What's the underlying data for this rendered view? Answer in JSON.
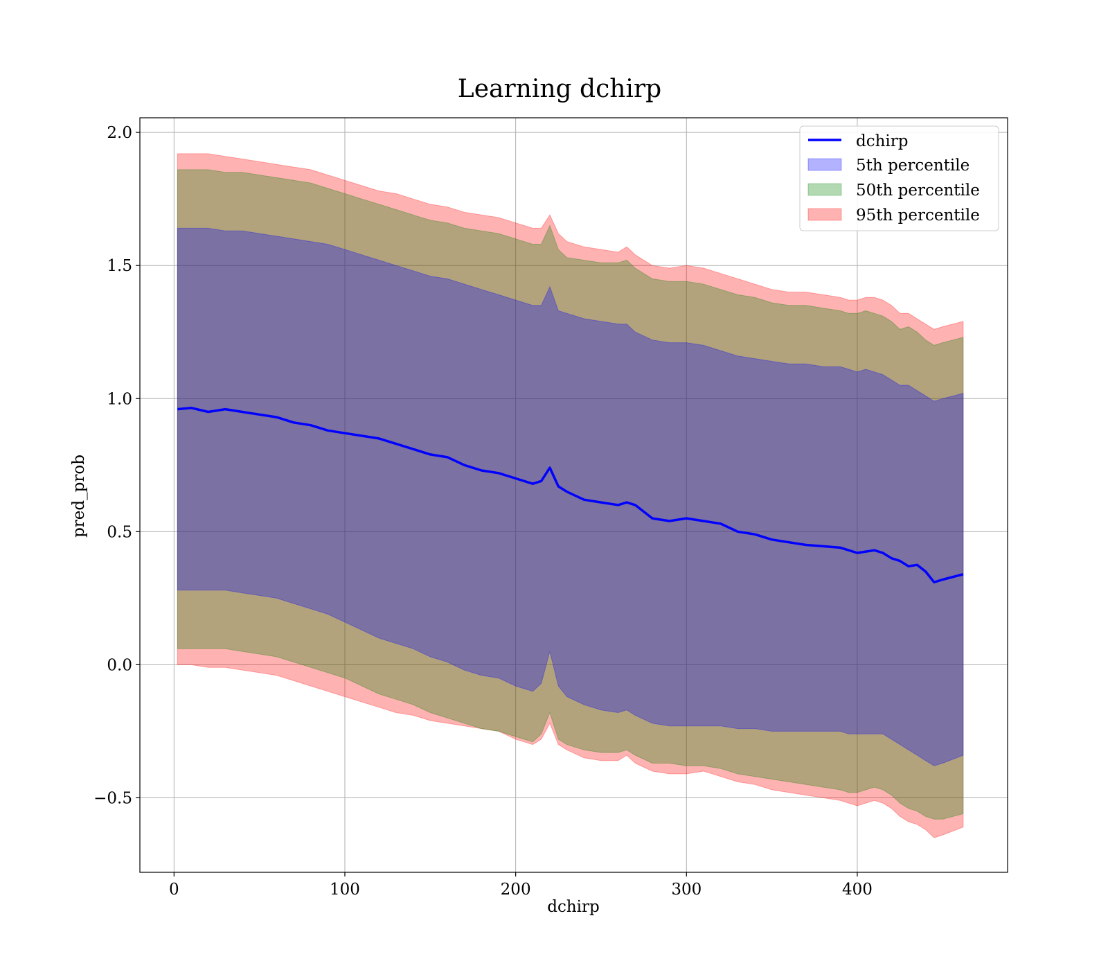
{
  "chart_data": {
    "type": "area",
    "title": "Learning dchirp",
    "xlabel": "dchirp",
    "ylabel": "pred_prob",
    "xlim": [
      -20,
      488
    ],
    "ylim": [
      -0.78,
      2.055
    ],
    "xticks": [
      0,
      100,
      200,
      300,
      400
    ],
    "yticks": [
      -0.5,
      0.0,
      0.5,
      1.0,
      1.5,
      2.0
    ],
    "ytick_labels": [
      "−0.5",
      "0.0",
      "0.5",
      "1.0",
      "1.5",
      "2.0"
    ],
    "grid": true,
    "legend_position": "upper right",
    "colors": {
      "line": "#0000ff",
      "p5": "#0000ff",
      "p50": "#008000",
      "p95": "#ff0000"
    },
    "x": [
      2,
      10,
      20,
      30,
      40,
      50,
      60,
      70,
      80,
      90,
      100,
      110,
      120,
      130,
      140,
      150,
      160,
      170,
      180,
      190,
      200,
      210,
      215,
      220,
      225,
      230,
      240,
      250,
      260,
      265,
      270,
      280,
      290,
      300,
      310,
      320,
      330,
      340,
      350,
      360,
      370,
      380,
      390,
      395,
      400,
      405,
      410,
      415,
      420,
      425,
      430,
      435,
      440,
      445,
      450,
      462
    ],
    "series": [
      {
        "name": "dchirp",
        "kind": "line",
        "values": [
          0.96,
          0.965,
          0.95,
          0.96,
          0.95,
          0.94,
          0.93,
          0.91,
          0.9,
          0.88,
          0.87,
          0.86,
          0.85,
          0.83,
          0.81,
          0.79,
          0.78,
          0.75,
          0.73,
          0.72,
          0.7,
          0.68,
          0.69,
          0.74,
          0.67,
          0.65,
          0.62,
          0.61,
          0.6,
          0.61,
          0.6,
          0.55,
          0.54,
          0.55,
          0.54,
          0.53,
          0.5,
          0.49,
          0.47,
          0.46,
          0.45,
          0.445,
          0.44,
          0.43,
          0.42,
          0.425,
          0.43,
          0.42,
          0.4,
          0.39,
          0.37,
          0.375,
          0.35,
          0.31,
          0.32,
          0.34
        ]
      },
      {
        "name": "5th percentile",
        "kind": "band",
        "lower": [
          0.28,
          0.28,
          0.28,
          0.28,
          0.27,
          0.26,
          0.25,
          0.23,
          0.21,
          0.19,
          0.16,
          0.13,
          0.1,
          0.08,
          0.06,
          0.03,
          0.01,
          -0.02,
          -0.04,
          -0.05,
          -0.08,
          -0.1,
          -0.07,
          0.05,
          -0.08,
          -0.12,
          -0.15,
          -0.17,
          -0.18,
          -0.17,
          -0.19,
          -0.22,
          -0.23,
          -0.23,
          -0.23,
          -0.23,
          -0.24,
          -0.24,
          -0.25,
          -0.25,
          -0.25,
          -0.25,
          -0.25,
          -0.26,
          -0.26,
          -0.26,
          -0.26,
          -0.26,
          -0.28,
          -0.3,
          -0.32,
          -0.34,
          -0.36,
          -0.38,
          -0.37,
          -0.34
        ],
        "upper": [
          1.64,
          1.64,
          1.64,
          1.63,
          1.63,
          1.62,
          1.61,
          1.6,
          1.59,
          1.58,
          1.56,
          1.54,
          1.52,
          1.5,
          1.48,
          1.46,
          1.45,
          1.43,
          1.41,
          1.39,
          1.37,
          1.35,
          1.35,
          1.42,
          1.33,
          1.32,
          1.3,
          1.29,
          1.28,
          1.28,
          1.25,
          1.22,
          1.21,
          1.21,
          1.2,
          1.18,
          1.16,
          1.15,
          1.14,
          1.13,
          1.13,
          1.12,
          1.12,
          1.11,
          1.1,
          1.11,
          1.1,
          1.09,
          1.07,
          1.05,
          1.05,
          1.03,
          1.01,
          0.99,
          1.0,
          1.02
        ]
      },
      {
        "name": "50th percentile",
        "kind": "band",
        "lower": [
          0.06,
          0.06,
          0.06,
          0.06,
          0.05,
          0.04,
          0.03,
          0.01,
          -0.01,
          -0.03,
          -0.05,
          -0.08,
          -0.11,
          -0.13,
          -0.15,
          -0.18,
          -0.2,
          -0.22,
          -0.24,
          -0.25,
          -0.27,
          -0.29,
          -0.26,
          -0.18,
          -0.28,
          -0.3,
          -0.32,
          -0.33,
          -0.33,
          -0.32,
          -0.34,
          -0.37,
          -0.37,
          -0.38,
          -0.38,
          -0.39,
          -0.41,
          -0.42,
          -0.43,
          -0.44,
          -0.45,
          -0.46,
          -0.47,
          -0.48,
          -0.48,
          -0.47,
          -0.46,
          -0.47,
          -0.49,
          -0.52,
          -0.54,
          -0.55,
          -0.57,
          -0.58,
          -0.58,
          -0.56
        ],
        "upper": [
          1.86,
          1.86,
          1.86,
          1.85,
          1.85,
          1.84,
          1.83,
          1.82,
          1.81,
          1.79,
          1.77,
          1.75,
          1.73,
          1.71,
          1.69,
          1.67,
          1.66,
          1.64,
          1.63,
          1.62,
          1.6,
          1.58,
          1.58,
          1.65,
          1.56,
          1.53,
          1.52,
          1.51,
          1.51,
          1.52,
          1.49,
          1.45,
          1.44,
          1.44,
          1.43,
          1.41,
          1.39,
          1.38,
          1.36,
          1.35,
          1.35,
          1.34,
          1.33,
          1.32,
          1.32,
          1.33,
          1.32,
          1.31,
          1.29,
          1.26,
          1.27,
          1.25,
          1.22,
          1.2,
          1.21,
          1.23
        ]
      },
      {
        "name": "95th percentile",
        "kind": "band",
        "lower": [
          0.0,
          0.0,
          -0.01,
          -0.01,
          -0.02,
          -0.03,
          -0.04,
          -0.06,
          -0.08,
          -0.1,
          -0.12,
          -0.14,
          -0.16,
          -0.18,
          -0.19,
          -0.21,
          -0.22,
          -0.23,
          -0.24,
          -0.25,
          -0.28,
          -0.3,
          -0.28,
          -0.22,
          -0.3,
          -0.32,
          -0.35,
          -0.36,
          -0.36,
          -0.34,
          -0.37,
          -0.4,
          -0.41,
          -0.41,
          -0.4,
          -0.42,
          -0.44,
          -0.45,
          -0.47,
          -0.48,
          -0.49,
          -0.5,
          -0.51,
          -0.52,
          -0.53,
          -0.52,
          -0.51,
          -0.52,
          -0.54,
          -0.57,
          -0.59,
          -0.6,
          -0.62,
          -0.65,
          -0.64,
          -0.61
        ],
        "upper": [
          1.92,
          1.92,
          1.92,
          1.91,
          1.9,
          1.89,
          1.88,
          1.87,
          1.86,
          1.84,
          1.82,
          1.8,
          1.78,
          1.77,
          1.75,
          1.73,
          1.72,
          1.7,
          1.69,
          1.68,
          1.66,
          1.64,
          1.64,
          1.69,
          1.62,
          1.59,
          1.57,
          1.56,
          1.55,
          1.57,
          1.54,
          1.5,
          1.49,
          1.5,
          1.49,
          1.47,
          1.45,
          1.43,
          1.41,
          1.4,
          1.4,
          1.39,
          1.38,
          1.37,
          1.37,
          1.38,
          1.38,
          1.37,
          1.35,
          1.32,
          1.32,
          1.3,
          1.28,
          1.26,
          1.27,
          1.29
        ]
      }
    ]
  }
}
